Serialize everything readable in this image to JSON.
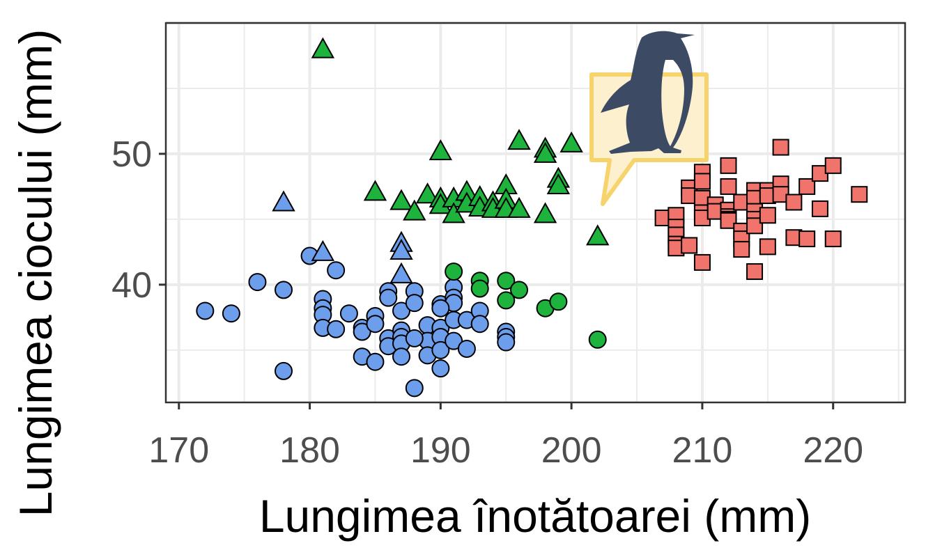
{
  "chart_data": {
    "type": "scatter",
    "xlabel": "Lungimea înotătoarei (mm)",
    "ylabel": "Lungimea ciocului (mm)",
    "xlim": [
      169,
      225.5
    ],
    "ylim": [
      31,
      60
    ],
    "x_ticks": [
      170,
      180,
      190,
      200,
      210,
      220
    ],
    "y_ticks": [
      40,
      50
    ],
    "grid": true,
    "legend": "none",
    "series": [
      {
        "marker": "circle",
        "color": "#6d9eeb",
        "points": [
          [
            172,
            38
          ],
          [
            174,
            37.8
          ],
          [
            176,
            40.2
          ],
          [
            178,
            39.6
          ],
          [
            178,
            33.4
          ],
          [
            180,
            42.2
          ],
          [
            181,
            38.9
          ],
          [
            181,
            38.2
          ],
          [
            181,
            37.7
          ],
          [
            181,
            36.7
          ],
          [
            182,
            41.1
          ],
          [
            182,
            36.6
          ],
          [
            183,
            37.8
          ],
          [
            184,
            36.7
          ],
          [
            184,
            36.4
          ],
          [
            184,
            34.5
          ],
          [
            185,
            37.6
          ],
          [
            185,
            37
          ],
          [
            185,
            34.1
          ],
          [
            186,
            39.5
          ],
          [
            186,
            39
          ],
          [
            186,
            35.9
          ],
          [
            186,
            35.3
          ],
          [
            187,
            38
          ],
          [
            187,
            36.5
          ],
          [
            187,
            36
          ],
          [
            187,
            35.5
          ],
          [
            187,
            34.5
          ],
          [
            188,
            39.5
          ],
          [
            188,
            38.6
          ],
          [
            188,
            32.1
          ],
          [
            189,
            36.9
          ],
          [
            189,
            35.7
          ],
          [
            189,
            34.6
          ],
          [
            190,
            38.5
          ],
          [
            190,
            36.7
          ],
          [
            190,
            36
          ],
          [
            190,
            35
          ],
          [
            190,
            33.6
          ],
          [
            191,
            39.8
          ],
          [
            191,
            39
          ],
          [
            191,
            38.6
          ],
          [
            191,
            37.3
          ],
          [
            191,
            35.7
          ],
          [
            192,
            37.3
          ],
          [
            192,
            35.1
          ],
          [
            193,
            38
          ],
          [
            193,
            37
          ],
          [
            195,
            36.4
          ],
          [
            195,
            36
          ],
          [
            195,
            35.6
          ],
          [
            188,
            35.9
          ],
          [
            190,
            38.2
          ]
        ]
      },
      {
        "marker": "circle",
        "color": "#1db33c",
        "points": [
          [
            191,
            41
          ],
          [
            193,
            40.3
          ],
          [
            193,
            39.7
          ],
          [
            195,
            40.3
          ],
          [
            195,
            38.8
          ],
          [
            196,
            39.6
          ],
          [
            198,
            38.2
          ],
          [
            199,
            38.7
          ],
          [
            202,
            35.8
          ]
        ]
      },
      {
        "marker": "triangle",
        "color": "#6d9eeb",
        "points": [
          [
            178,
            46.3
          ],
          [
            181,
            42.5
          ],
          [
            187,
            43.2
          ],
          [
            187,
            42.6
          ],
          [
            187,
            40.8
          ]
        ]
      },
      {
        "marker": "triangle",
        "color": "#1db33c",
        "points": [
          [
            181,
            58
          ],
          [
            185,
            47.1
          ],
          [
            187,
            46.4
          ],
          [
            188,
            45.6
          ],
          [
            189,
            46.9
          ],
          [
            190,
            50.2
          ],
          [
            190,
            46.6
          ],
          [
            190,
            46.1
          ],
          [
            191,
            46.6
          ],
          [
            191,
            45.4
          ],
          [
            192,
            47.1
          ],
          [
            192,
            46.2
          ],
          [
            193,
            46.7
          ],
          [
            193,
            45.9
          ],
          [
            194,
            46.3
          ],
          [
            194,
            45.8
          ],
          [
            195,
            47.6
          ],
          [
            195,
            46.5
          ],
          [
            195,
            45.8
          ],
          [
            196,
            51
          ],
          [
            196,
            45.8
          ],
          [
            198,
            50.4
          ],
          [
            198,
            50
          ],
          [
            198,
            45.4
          ],
          [
            199,
            48.1
          ],
          [
            199,
            47.6
          ],
          [
            200,
            50.8
          ],
          [
            202,
            43.7
          ]
        ]
      },
      {
        "marker": "square",
        "color": "#f0746c",
        "points": [
          [
            207,
            45.1
          ],
          [
            208,
            45.3
          ],
          [
            208,
            44.4
          ],
          [
            208,
            43.8
          ],
          [
            208,
            43.1
          ],
          [
            208,
            42.8
          ],
          [
            209,
            47.4
          ],
          [
            209,
            46.8
          ],
          [
            209,
            43
          ],
          [
            210,
            48.6
          ],
          [
            210,
            47.9
          ],
          [
            210,
            46.6
          ],
          [
            210,
            45.5
          ],
          [
            210,
            45.1
          ],
          [
            210,
            41.7
          ],
          [
            211,
            46.1
          ],
          [
            211,
            45.6
          ],
          [
            212,
            49.1
          ],
          [
            212,
            47.5
          ],
          [
            212,
            45.7
          ],
          [
            212,
            45.2
          ],
          [
            212,
            45
          ],
          [
            212,
            44.9
          ],
          [
            213,
            46.3
          ],
          [
            213,
            44.1
          ],
          [
            213,
            43.5
          ],
          [
            213,
            42.7
          ],
          [
            214,
            47.2
          ],
          [
            214,
            46.6
          ],
          [
            214,
            45.6
          ],
          [
            214,
            45
          ],
          [
            214,
            44.5
          ],
          [
            214,
            41
          ],
          [
            215,
            47.2
          ],
          [
            215,
            46.8
          ],
          [
            215,
            45.3
          ],
          [
            215,
            42.9
          ],
          [
            216,
            50.5
          ],
          [
            216,
            47.7
          ],
          [
            216,
            46.9
          ],
          [
            217,
            46.3
          ],
          [
            217,
            43.6
          ],
          [
            218,
            47.5
          ],
          [
            218,
            43.5
          ],
          [
            219,
            48.5
          ],
          [
            219,
            45.8
          ],
          [
            220,
            49.1
          ],
          [
            220,
            43.5
          ],
          [
            222,
            46.9
          ]
        ]
      }
    ]
  },
  "logo": {
    "name": "penguin-speech-bubble-icon",
    "colors": {
      "penguin": "#3c4b63",
      "bubble_fill": "#fdf0cf",
      "bubble_stroke": "#f7d36c"
    }
  }
}
